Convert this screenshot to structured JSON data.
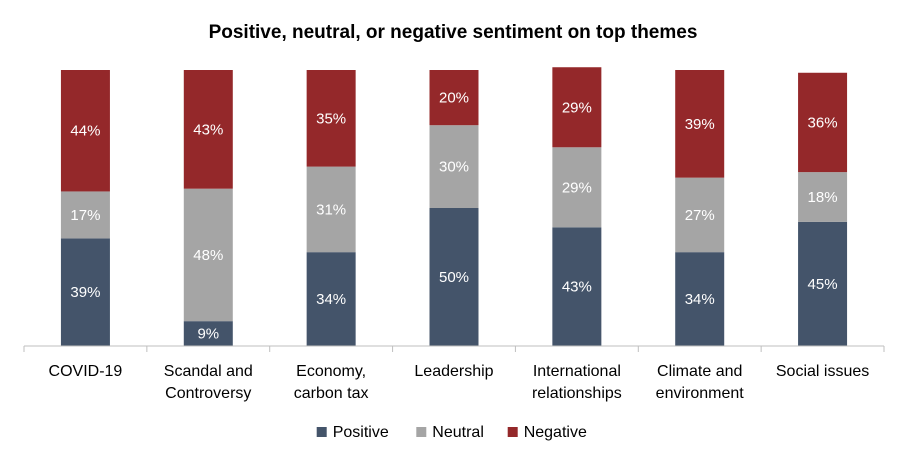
{
  "chart_data": {
    "type": "bar",
    "stacked": true,
    "title": "Positive, neutral, or negative sentiment on top themes",
    "categories": [
      [
        "COVID-19"
      ],
      [
        "Scandal and",
        "Controversy"
      ],
      [
        "Economy,",
        "carbon tax"
      ],
      [
        "Leadership"
      ],
      [
        "International",
        "relationships"
      ],
      [
        "Climate and",
        "environment"
      ],
      [
        "Social issues"
      ]
    ],
    "series": [
      {
        "name": "Positive",
        "color": "#44546A",
        "values": [
          39,
          9,
          34,
          50,
          43,
          34,
          45
        ]
      },
      {
        "name": "Neutral",
        "color": "#A5A5A5",
        "values": [
          17,
          48,
          31,
          30,
          29,
          27,
          18
        ]
      },
      {
        "name": "Negative",
        "color": "#94282A",
        "values": [
          44,
          43,
          35,
          20,
          29,
          39,
          36
        ]
      }
    ],
    "value_suffix": "%",
    "ylim": [
      0,
      100
    ],
    "grid": false,
    "legend_position": "bottom"
  }
}
